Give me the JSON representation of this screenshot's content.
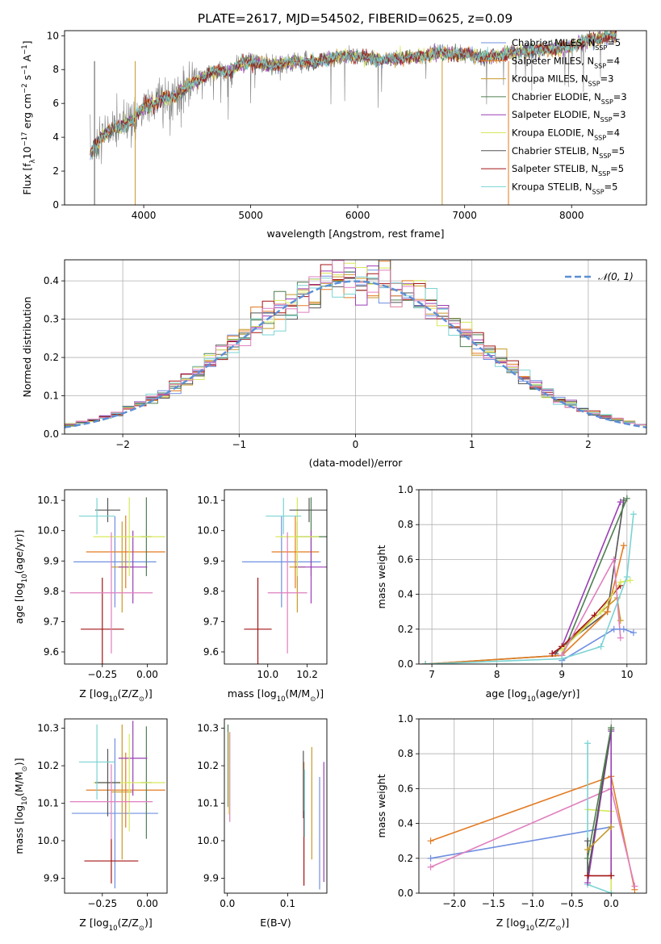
{
  "figure_title": "PLATE=2617, MJD=54502, FIBERID=0625, z=0.09",
  "colors": {
    "Chabrier MILES": "#6f8fe0",
    "Salpeter MILES": "#e37b22",
    "Kroupa MILES": "#c89a2a",
    "Chabrier ELODIE": "#4f7f50",
    "Salpeter ELODIE": "#9a3fb5",
    "Kroupa ELODIE": "#d7e85a",
    "Chabrier STELIB": "#555555",
    "Salpeter STELIB": "#a31414",
    "Kroupa STELIB": "#7ad3d3",
    "gaussian": "#5b8fd6",
    "pink": "#e07fbf",
    "data": "#808080"
  },
  "chart_data": [
    {
      "id": "spectrum",
      "type": "line",
      "title": "PLATE=2617, MJD=54502, FIBERID=0625, z=0.09",
      "xlabel": "wavelength [Angstrom, rest frame]",
      "ylabel_parts": [
        "Flux [f",
        "λ",
        "10",
        "−17",
        " erg cm",
        "−2",
        " s",
        "−1",
        " A",
        "−1",
        "]"
      ],
      "xlim": [
        3260,
        8700
      ],
      "ylim": [
        0,
        10.3
      ],
      "xticks": [
        4000,
        5000,
        6000,
        7000,
        8000
      ],
      "yticks": [
        0,
        2,
        4,
        6,
        8,
        10
      ],
      "legend_position": "top-right",
      "legend": [
        {
          "name": "Chabrier MILES",
          "nssp": "5",
          "color": "#6f8fe0"
        },
        {
          "name": "Salpeter MILES",
          "nssp": "4",
          "color": "#e37b22"
        },
        {
          "name": "Kroupa MILES",
          "nssp": "3",
          "color": "#c89a2a"
        },
        {
          "name": "Chabrier ELODIE",
          "nssp": "3",
          "color": "#4f7f50"
        },
        {
          "name": "Salpeter ELODIE",
          "nssp": "3",
          "color": "#9a3fb5"
        },
        {
          "name": "Kroupa ELODIE",
          "nssp": "4",
          "color": "#d7e85a"
        },
        {
          "name": "Chabrier STELIB",
          "nssp": "5",
          "color": "#555555"
        },
        {
          "name": "Salpeter STELIB",
          "nssp": "5",
          "color": "#a31414"
        },
        {
          "name": "Kroupa STELIB",
          "nssp": "5",
          "color": "#7ad3d3"
        }
      ],
      "legend_nssp_label": [
        "N",
        "SSP",
        "="
      ],
      "continuum": [
        [
          3500,
          3.0
        ],
        [
          3600,
          4.0
        ],
        [
          3700,
          4.5
        ],
        [
          3800,
          4.7
        ],
        [
          3900,
          5.0
        ],
        [
          4000,
          5.8
        ],
        [
          4100,
          6.0
        ],
        [
          4200,
          6.3
        ],
        [
          4300,
          6.4
        ],
        [
          4400,
          7.0
        ],
        [
          4500,
          7.3
        ],
        [
          4600,
          7.8
        ],
        [
          4700,
          7.9
        ],
        [
          4800,
          7.9
        ],
        [
          4900,
          8.3
        ],
        [
          5000,
          8.5
        ],
        [
          5200,
          8.2
        ],
        [
          5400,
          8.5
        ],
        [
          5600,
          8.4
        ],
        [
          5800,
          8.8
        ],
        [
          6000,
          8.8
        ],
        [
          6200,
          8.6
        ],
        [
          6400,
          8.7
        ],
        [
          6600,
          8.8
        ],
        [
          6800,
          9.0
        ],
        [
          7000,
          8.9
        ],
        [
          7200,
          8.7
        ],
        [
          7400,
          8.9
        ],
        [
          7600,
          9.1
        ],
        [
          7800,
          9.2
        ],
        [
          8000,
          9.4
        ],
        [
          8200,
          9.8
        ],
        [
          8400,
          10.0
        ]
      ]
    },
    {
      "id": "residuals",
      "type": "histogram",
      "xlabel": "(data-model)/error",
      "ylabel": "Normed distribution",
      "xlim": [
        -2.5,
        2.5
      ],
      "ylim": [
        0,
        0.455
      ],
      "xticks": [
        -2,
        -1,
        0,
        1,
        2
      ],
      "yticks": [
        0.0,
        0.1,
        0.2,
        0.3,
        0.4
      ],
      "legend": "𝒩(0, 1)",
      "legend_position": "top-right",
      "grid": true,
      "bin_width": 0.1
    },
    {
      "id": "age_vs_Z",
      "type": "scatter",
      "xlabel": "Z [log10(Z/Z⊙)]",
      "xlabel_parts": [
        "Z [log",
        "10",
        "(Z/Z",
        "⊙",
        ")]"
      ],
      "ylabel_parts": [
        "age  [log",
        "10",
        "(age/yr)]"
      ],
      "xlim": [
        -0.46,
        0.11
      ],
      "ylim": [
        9.56,
        10.135
      ],
      "xticks": [
        -0.25,
        0.0
      ],
      "yticks": [
        9.6,
        9.7,
        9.8,
        9.9,
        10.0,
        10.1
      ],
      "points": [
        {
          "color": "#6f8fe0",
          "x": -0.18,
          "y": 9.897,
          "xerr": 0.23,
          "yerr": 0.15
        },
        {
          "color": "#e37b22",
          "x": -0.12,
          "y": 9.93,
          "xerr": 0.22,
          "yerr": 0.12
        },
        {
          "color": "#c89a2a",
          "x": -0.14,
          "y": 9.88,
          "xerr": 0.06,
          "yerr": 0.15
        },
        {
          "color": "#4f7f50",
          "x": -0.005,
          "y": 9.98,
          "xerr": 0.03,
          "yerr": 0.13
        },
        {
          "color": "#9a3fb5",
          "x": -0.08,
          "y": 9.88,
          "xerr": 0.08,
          "yerr": 0.12
        },
        {
          "color": "#d7e85a",
          "x": -0.1,
          "y": 9.98,
          "xerr": 0.2,
          "yerr": 0.13
        },
        {
          "color": "#555555",
          "x": -0.22,
          "y": 10.068,
          "xerr": 0.07,
          "yerr": 0.04
        },
        {
          "color": "#a31414",
          "x": -0.25,
          "y": 9.675,
          "xerr": 0.12,
          "yerr": 0.17
        },
        {
          "color": "#e07fbf",
          "x": -0.2,
          "y": 9.795,
          "xerr": 0.23,
          "yerr": 0.2
        },
        {
          "color": "#7ad3d3",
          "x": -0.28,
          "y": 10.048,
          "xerr": 0.1,
          "yerr": 0.06
        }
      ]
    },
    {
      "id": "age_vs_mass",
      "type": "scatter",
      "xlabel_parts": [
        "mass [log",
        "10",
        "(M/M",
        "⊙",
        ")]"
      ],
      "xlim": [
        9.78,
        10.3
      ],
      "ylim": [
        9.56,
        10.135
      ],
      "xticks": [
        10.0,
        10.2
      ],
      "yticks": [
        9.6,
        9.7,
        9.8,
        9.9,
        10.0,
        10.1
      ],
      "points": [
        {
          "color": "#6f8fe0",
          "x": 10.07,
          "y": 9.897,
          "xerr": 0.2,
          "yerr": 0.15
        },
        {
          "color": "#e37b22",
          "x": 10.14,
          "y": 9.93,
          "xerr": 0.12,
          "yerr": 0.12
        },
        {
          "color": "#c89a2a",
          "x": 10.15,
          "y": 9.88,
          "xerr": 0.04,
          "yerr": 0.15
        },
        {
          "color": "#4f7f50",
          "x": 10.22,
          "y": 9.98,
          "xerr": 0.08,
          "yerr": 0.13
        },
        {
          "color": "#9a3fb5",
          "x": 10.22,
          "y": 9.88,
          "xerr": 0.08,
          "yerr": 0.12
        },
        {
          "color": "#d7e85a",
          "x": 10.15,
          "y": 9.98,
          "xerr": 0.11,
          "yerr": 0.13
        },
        {
          "color": "#555555",
          "x": 10.21,
          "y": 10.068,
          "xerr": 0.1,
          "yerr": 0.04
        },
        {
          "color": "#a31414",
          "x": 9.95,
          "y": 9.675,
          "xerr": 0.07,
          "yerr": 0.17
        },
        {
          "color": "#e07fbf",
          "x": 10.1,
          "y": 9.795,
          "xerr": 0.1,
          "yerr": 0.2
        },
        {
          "color": "#7ad3d3",
          "x": 10.08,
          "y": 10.048,
          "xerr": 0.09,
          "yerr": 0.06
        }
      ]
    },
    {
      "id": "weight_vs_age",
      "type": "line",
      "xlabel_parts": [
        "age  [log",
        "10",
        "(age/yr)]"
      ],
      "ylabel": "mass weight",
      "xlim": [
        6.8,
        10.3
      ],
      "ylim": [
        0,
        1.0
      ],
      "xticks": [
        7,
        8,
        9,
        10
      ],
      "yticks": [
        0.0,
        0.2,
        0.4,
        0.6,
        0.8,
        1.0
      ],
      "grid": true,
      "series": [
        {
          "color": "#555555",
          "points": [
            [
              8.9,
              0.06
            ],
            [
              9.0,
              0.1
            ],
            [
              9.7,
              0.3
            ],
            [
              9.95,
              0.94
            ]
          ]
        },
        {
          "color": "#9a3fb5",
          "points": [
            [
              8.85,
              0.06
            ],
            [
              9.0,
              0.1
            ],
            [
              9.9,
              0.93
            ]
          ]
        },
        {
          "color": "#4f7f50",
          "points": [
            [
              6.9,
              0.0
            ],
            [
              9.0,
              0.05
            ],
            [
              10.0,
              0.95
            ]
          ]
        },
        {
          "color": "#e37b22",
          "points": [
            [
              6.9,
              0.0
            ],
            [
              9.0,
              0.05
            ],
            [
              9.7,
              0.3
            ],
            [
              9.95,
              0.68
            ]
          ]
        },
        {
          "color": "#c89a2a",
          "points": [
            [
              9.0,
              0.1
            ],
            [
              9.85,
              0.38
            ],
            [
              9.9,
              0.25
            ]
          ]
        },
        {
          "color": "#a31414",
          "points": [
            [
              8.85,
              0.06
            ],
            [
              9.0,
              0.1
            ],
            [
              9.5,
              0.28
            ],
            [
              9.9,
              0.45
            ]
          ]
        },
        {
          "color": "#d7e85a",
          "points": [
            [
              9.0,
              0.08
            ],
            [
              9.6,
              0.3
            ],
            [
              9.9,
              0.47
            ],
            [
              10.05,
              0.48
            ]
          ]
        },
        {
          "color": "#e07fbf",
          "points": [
            [
              9.0,
              0.05
            ],
            [
              9.8,
              0.6
            ],
            [
              9.9,
              0.15
            ]
          ]
        },
        {
          "color": "#6f8fe0",
          "points": [
            [
              9.0,
              0.02
            ],
            [
              9.8,
              0.2
            ],
            [
              9.95,
              0.2
            ],
            [
              10.1,
              0.18
            ]
          ]
        },
        {
          "color": "#7ad3d3",
          "points": [
            [
              6.9,
              0.0
            ],
            [
              9.0,
              0.03
            ],
            [
              9.6,
              0.1
            ],
            [
              10.0,
              0.5
            ],
            [
              10.1,
              0.86
            ]
          ]
        }
      ]
    },
    {
      "id": "mass_vs_Z",
      "type": "scatter",
      "xlabel_parts": [
        "Z [log",
        "10",
        "(Z/Z",
        "⊙",
        ")]"
      ],
      "ylabel_parts": [
        "mass [log",
        "10",
        "(M/M",
        "⊙",
        ")]"
      ],
      "xlim": [
        -0.46,
        0.11
      ],
      "ylim": [
        9.86,
        10.325
      ],
      "xticks": [
        -0.25,
        0.0
      ],
      "yticks": [
        9.9,
        10.0,
        10.1,
        10.2,
        10.3
      ],
      "points": [
        {
          "color": "#6f8fe0",
          "x": -0.18,
          "y": 10.073,
          "xerr": 0.24,
          "yerr": 0.2
        },
        {
          "color": "#e37b22",
          "x": -0.12,
          "y": 10.135,
          "xerr": 0.22,
          "yerr": 0.1
        },
        {
          "color": "#c89a2a",
          "x": -0.14,
          "y": 10.13,
          "xerr": 0.06,
          "yerr": 0.18
        },
        {
          "color": "#4f7f50",
          "x": -0.005,
          "y": 10.155,
          "xerr": 0.03,
          "yerr": 0.15
        },
        {
          "color": "#9a3fb5",
          "x": -0.08,
          "y": 10.22,
          "xerr": 0.08,
          "yerr": 0.1
        },
        {
          "color": "#d7e85a",
          "x": -0.1,
          "y": 10.155,
          "xerr": 0.2,
          "yerr": 0.13
        },
        {
          "color": "#555555",
          "x": -0.22,
          "y": 10.155,
          "xerr": 0.07,
          "yerr": 0.09
        },
        {
          "color": "#a31414",
          "x": -0.2,
          "y": 9.946,
          "xerr": 0.15,
          "yerr": 0.06
        },
        {
          "color": "#e07fbf",
          "x": -0.2,
          "y": 10.104,
          "xerr": 0.23,
          "yerr": 0.1
        },
        {
          "color": "#7ad3d3",
          "x": -0.28,
          "y": 10.21,
          "xerr": 0.1,
          "yerr": 0.1
        }
      ]
    },
    {
      "id": "mass_vs_ebv",
      "type": "scatter",
      "xlabel": "E(B-V)",
      "xlim": [
        -0.005,
        0.165
      ],
      "ylim": [
        9.86,
        10.325
      ],
      "xticks": [
        0.0,
        0.1
      ],
      "yticks": [
        9.9,
        10.0,
        10.1,
        10.2,
        10.3
      ],
      "points": [
        {
          "color": "#6f8fe0",
          "x": 0.153,
          "y": 10.02,
          "xerr": 0,
          "yerr": 0.15
        },
        {
          "color": "#e37b22",
          "x": 0.127,
          "y": 10.12,
          "xerr": 0,
          "yerr": 0.09
        },
        {
          "color": "#c89a2a",
          "x": 0.14,
          "y": 10.1,
          "xerr": 0,
          "yerr": 0.15
        },
        {
          "color": "#4f7f50",
          "x": 0.001,
          "y": 10.2,
          "xerr": 0,
          "yerr": 0.11
        },
        {
          "color": "#9a3fb5",
          "x": 0.16,
          "y": 10.05,
          "xerr": 0,
          "yerr": 0.16
        },
        {
          "color": "#d7e85a",
          "x": 0.002,
          "y": 10.18,
          "xerr": 0,
          "yerr": 0.11
        },
        {
          "color": "#555555",
          "x": 0.126,
          "y": 10.15,
          "xerr": 0,
          "yerr": 0.09
        },
        {
          "color": "#a31414",
          "x": 0.127,
          "y": 9.98,
          "xerr": 0,
          "yerr": 0.1
        },
        {
          "color": "#e07fbf",
          "x": 0.004,
          "y": 10.17,
          "xerr": 0,
          "yerr": 0.12
        },
        {
          "color": "#7ad3d3",
          "x": 0.128,
          "y": 10.1,
          "xerr": 0,
          "yerr": 0.09
        }
      ]
    },
    {
      "id": "weight_vs_Z",
      "type": "line",
      "xlabel_parts": [
        "Z [log",
        "10",
        "(Z/Z",
        "⊙",
        ")]"
      ],
      "ylabel": "mass weight",
      "xlim": [
        -2.45,
        0.45
      ],
      "ylim": [
        0,
        1.0
      ],
      "xticks": [
        -2.0,
        -1.5,
        -1.0,
        -0.5,
        0.0
      ],
      "xticklabels": [
        "−2.0",
        "−1.5",
        "−1.0",
        "−0.5",
        "0.0"
      ],
      "yticks": [
        0.0,
        0.2,
        0.4,
        0.6,
        0.8,
        1.0
      ],
      "grid": true,
      "series": [
        {
          "color": "#e37b22",
          "points": [
            [
              -2.3,
              0.3
            ],
            [
              0.0,
              0.67
            ],
            [
              0.3,
              0.02
            ]
          ]
        },
        {
          "color": "#6f8fe0",
          "points": [
            [
              -2.3,
              0.2
            ],
            [
              0.0,
              0.38
            ]
          ]
        },
        {
          "color": "#e07fbf",
          "points": [
            [
              -2.3,
              0.15
            ],
            [
              0.0,
              0.6
            ],
            [
              0.3,
              0.04
            ]
          ]
        },
        {
          "color": "#d7e85a",
          "points": [
            [
              -0.3,
              0.48
            ],
            [
              0.0,
              0.47
            ],
            [
              0.0,
              0.0
            ]
          ]
        },
        {
          "color": "#7ad3d3",
          "points": [
            [
              -0.3,
              0.86
            ],
            [
              -0.3,
              0.05
            ],
            [
              0.0,
              0.0
            ]
          ]
        },
        {
          "color": "#9a3fb5",
          "points": [
            [
              -0.3,
              0.06
            ],
            [
              0.0,
              0.93
            ],
            [
              0.0,
              0.1
            ]
          ]
        },
        {
          "color": "#555555",
          "points": [
            [
              -0.3,
              0.3
            ],
            [
              -0.3,
              0.1
            ],
            [
              0.0,
              0.94
            ]
          ]
        },
        {
          "color": "#a31414",
          "points": [
            [
              -0.3,
              0.1
            ],
            [
              0.0,
              0.1
            ]
          ]
        },
        {
          "color": "#4f7f50",
          "points": [
            [
              -0.3,
              0.2
            ],
            [
              0.0,
              0.95
            ]
          ]
        },
        {
          "color": "#c89a2a",
          "points": [
            [
              -0.3,
              0.25
            ],
            [
              0.0,
              0.38
            ]
          ]
        }
      ]
    }
  ]
}
